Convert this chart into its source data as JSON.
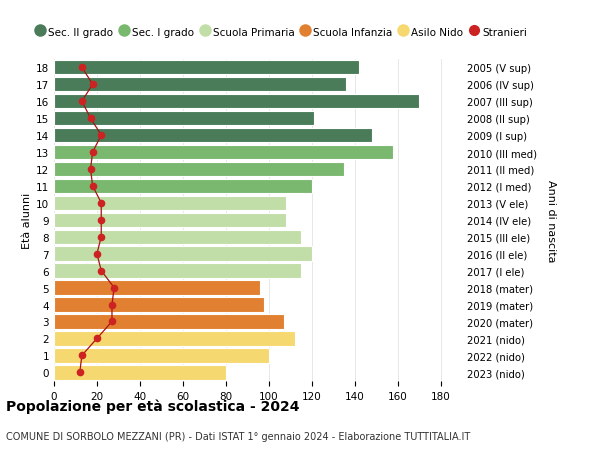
{
  "ages": [
    18,
    17,
    16,
    15,
    14,
    13,
    12,
    11,
    10,
    9,
    8,
    7,
    6,
    5,
    4,
    3,
    2,
    1,
    0
  ],
  "years": [
    "2005 (V sup)",
    "2006 (IV sup)",
    "2007 (III sup)",
    "2008 (II sup)",
    "2009 (I sup)",
    "2010 (III med)",
    "2011 (II med)",
    "2012 (I med)",
    "2013 (V ele)",
    "2014 (IV ele)",
    "2015 (III ele)",
    "2016 (II ele)",
    "2017 (I ele)",
    "2018 (mater)",
    "2019 (mater)",
    "2020 (mater)",
    "2021 (nido)",
    "2022 (nido)",
    "2023 (nido)"
  ],
  "bar_values": [
    142,
    136,
    170,
    121,
    148,
    158,
    135,
    120,
    108,
    108,
    115,
    120,
    115,
    96,
    98,
    107,
    112,
    100,
    80
  ],
  "stranieri": [
    13,
    18,
    13,
    17,
    22,
    18,
    17,
    18,
    22,
    22,
    22,
    20,
    22,
    28,
    27,
    27,
    20,
    13,
    12
  ],
  "bar_colors": [
    "#4a7c59",
    "#4a7c59",
    "#4a7c59",
    "#4a7c59",
    "#4a7c59",
    "#7ab870",
    "#7ab870",
    "#7ab870",
    "#c2dea8",
    "#c2dea8",
    "#c2dea8",
    "#c2dea8",
    "#c2dea8",
    "#e08030",
    "#e08030",
    "#e08030",
    "#f5d870",
    "#f5d870",
    "#f5d870"
  ],
  "legend_colors": [
    "#4a7c59",
    "#7ab870",
    "#c2dea8",
    "#e08030",
    "#f5d870",
    "#cc2222"
  ],
  "legend_labels": [
    "Sec. II grado",
    "Sec. I grado",
    "Scuola Primaria",
    "Scuola Infanzia",
    "Asilo Nido",
    "Stranieri"
  ],
  "title": "Popolazione per età scolastica - 2024",
  "subtitle": "COMUNE DI SORBOLO MEZZANI (PR) - Dati ISTAT 1° gennaio 2024 - Elaborazione TUTTITALIA.IT",
  "ylabel_left": "Età alunni",
  "ylabel_right": "Anni di nascita",
  "xlim": [
    0,
    190
  ],
  "xticks": [
    0,
    20,
    40,
    60,
    80,
    100,
    120,
    140,
    160,
    180
  ],
  "bg_color": "#ffffff",
  "grid_color": "#dddddd",
  "stranieri_color": "#cc2222",
  "stranieri_line_color": "#aa1111"
}
